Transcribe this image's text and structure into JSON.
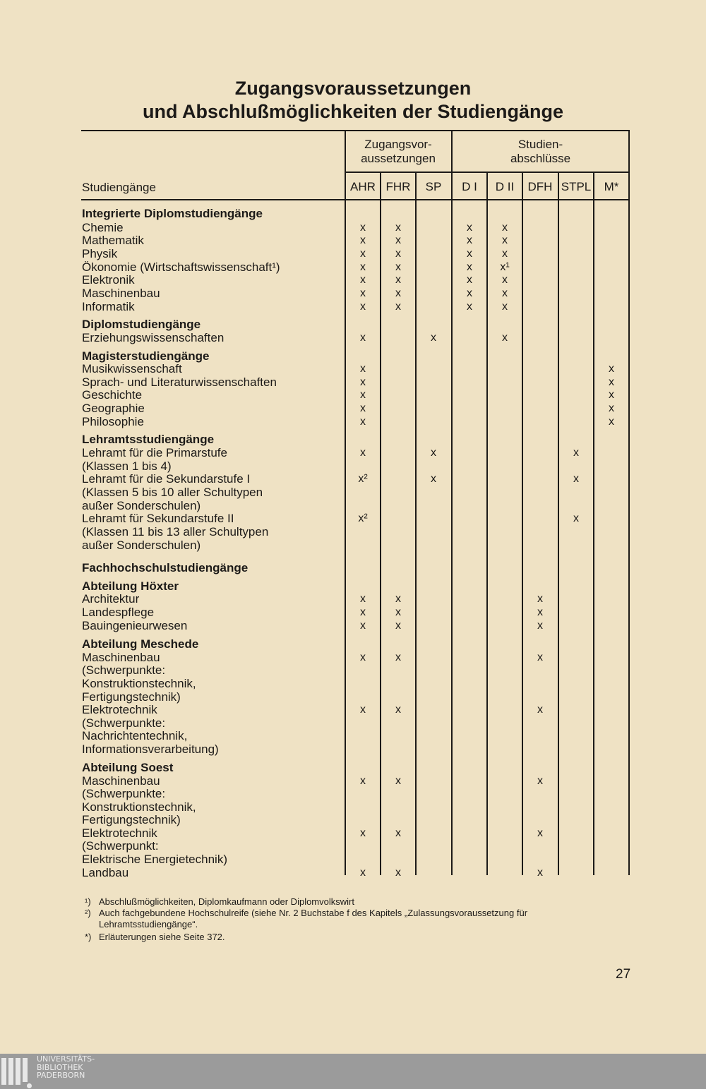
{
  "title": {
    "line1": "Zugangsvoraussetzungen",
    "line2": "und Abschlußmöglichkeiten der Studiengänge"
  },
  "table": {
    "row_header": "Studiengänge",
    "group_headers": [
      "Zugangsvor-\naussetzungen",
      "Studien-\nabschlüsse"
    ],
    "columns": [
      "AHR",
      "FHR",
      "SP",
      "D I",
      "D II",
      "DFH",
      "STPL",
      "M*"
    ],
    "rows": [
      {
        "label": "Integrierte Diplomstudiengänge",
        "bold": true,
        "marks": []
      },
      {
        "label": "Chemie",
        "marks": [
          "x",
          "x",
          "",
          "x",
          "x",
          "",
          "",
          ""
        ]
      },
      {
        "label": "Mathematik",
        "marks": [
          "x",
          "x",
          "",
          "x",
          "x",
          "",
          "",
          ""
        ]
      },
      {
        "label": "Physik",
        "marks": [
          "x",
          "x",
          "",
          "x",
          "x",
          "",
          "",
          ""
        ]
      },
      {
        "label": "Ökonomie (Wirtschaftswissenschaft¹)",
        "marks": [
          "x",
          "x",
          "",
          "x",
          "x¹",
          "",
          "",
          ""
        ]
      },
      {
        "label": "Elektronik",
        "marks": [
          "x",
          "x",
          "",
          "x",
          "x",
          "",
          "",
          ""
        ]
      },
      {
        "label": "Maschinenbau",
        "marks": [
          "x",
          "x",
          "",
          "x",
          "x",
          "",
          "",
          ""
        ]
      },
      {
        "label": "Informatik",
        "marks": [
          "x",
          "x",
          "",
          "x",
          "x",
          "",
          "",
          ""
        ]
      },
      {
        "label": "Diplomstudiengänge",
        "bold": true,
        "marks": []
      },
      {
        "label": "Erziehungswissenschaften",
        "marks": [
          "x",
          "",
          "x",
          "",
          "x",
          "",
          "",
          ""
        ]
      },
      {
        "label": "Magisterstudiengänge",
        "bold": true,
        "marks": []
      },
      {
        "label": "Musikwissenschaft",
        "marks": [
          "x",
          "",
          "",
          "",
          "",
          "",
          "",
          "x"
        ]
      },
      {
        "label": "Sprach- und Literaturwissenschaften",
        "marks": [
          "x",
          "",
          "",
          "",
          "",
          "",
          "",
          "x"
        ]
      },
      {
        "label": "Geschichte",
        "marks": [
          "x",
          "",
          "",
          "",
          "",
          "",
          "",
          "x"
        ]
      },
      {
        "label": "Geographie",
        "marks": [
          "x",
          "",
          "",
          "",
          "",
          "",
          "",
          "x"
        ]
      },
      {
        "label": "Philosophie",
        "marks": [
          "x",
          "",
          "",
          "",
          "",
          "",
          "",
          "x"
        ]
      },
      {
        "label": "Lehramtsstudiengänge",
        "bold": true,
        "marks": []
      },
      {
        "label": "Lehramt für die Primarstufe",
        "marks": [
          "x",
          "",
          "x",
          "",
          "",
          "",
          "x",
          ""
        ]
      },
      {
        "label": "(Klassen 1 bis 4)",
        "marks": []
      },
      {
        "label": "Lehramt für die Sekundarstufe I",
        "marks": [
          "x²",
          "",
          "x",
          "",
          "",
          "",
          "x",
          ""
        ]
      },
      {
        "label": "(Klassen 5 bis 10 aller Schultypen",
        "marks": []
      },
      {
        "label": "außer Sonderschulen)",
        "marks": []
      },
      {
        "label": "Lehramt für Sekundarstufe II",
        "marks": [
          "x²",
          "",
          "",
          "",
          "",
          "",
          "x",
          ""
        ]
      },
      {
        "label": "(Klassen 11 bis 13 aller Schultypen",
        "marks": []
      },
      {
        "label": "außer Sonderschulen)",
        "marks": []
      },
      {
        "label": "Fachhochschulstudiengänge",
        "bold": true,
        "marks": []
      },
      {
        "label": "Abteilung Höxter",
        "bold": true,
        "marks": []
      },
      {
        "label": "Architektur",
        "marks": [
          "x",
          "x",
          "",
          "",
          "",
          "x",
          "",
          ""
        ]
      },
      {
        "label": "Landespflege",
        "marks": [
          "x",
          "x",
          "",
          "",
          "",
          "x",
          "",
          ""
        ]
      },
      {
        "label": "Bauingenieurwesen",
        "marks": [
          "x",
          "x",
          "",
          "",
          "",
          "x",
          "",
          ""
        ]
      },
      {
        "label": "Abteilung Meschede",
        "bold": true,
        "marks": []
      },
      {
        "label": "Maschinenbau",
        "marks": [
          "x",
          "x",
          "",
          "",
          "",
          "x",
          "",
          ""
        ]
      },
      {
        "label": "(Schwerpunkte:",
        "marks": []
      },
      {
        "label": "Konstruktionstechnik,",
        "marks": []
      },
      {
        "label": "Fertigungstechnik)",
        "marks": []
      },
      {
        "label": "Elektrotechnik",
        "marks": [
          "x",
          "x",
          "",
          "",
          "",
          "x",
          "",
          ""
        ]
      },
      {
        "label": "(Schwerpunkte:",
        "marks": []
      },
      {
        "label": "Nachrichtentechnik,",
        "marks": []
      },
      {
        "label": "Informationsverarbeitung)",
        "marks": []
      },
      {
        "label": "Abteilung Soest",
        "bold": true,
        "marks": []
      },
      {
        "label": "Maschinenbau",
        "marks": [
          "x",
          "x",
          "",
          "",
          "",
          "x",
          "",
          ""
        ]
      },
      {
        "label": "(Schwerpunkte:",
        "marks": []
      },
      {
        "label": "Konstruktionstechnik,",
        "marks": []
      },
      {
        "label": "Fertigungstechnik)",
        "marks": []
      },
      {
        "label": "Elektrotechnik",
        "marks": [
          "x",
          "x",
          "",
          "",
          "",
          "x",
          "",
          ""
        ]
      },
      {
        "label": "(Schwerpunkt:",
        "marks": []
      },
      {
        "label": "Elektrische Energietechnik)",
        "marks": []
      },
      {
        "label": "Landbau",
        "marks": [
          "x",
          "x",
          "",
          "",
          "",
          "x",
          "",
          ""
        ]
      }
    ]
  },
  "footnotes": [
    {
      "mark": "¹)",
      "text": "Abschlußmöglichkeiten, Diplomkaufmann oder Diplomvolkswirt"
    },
    {
      "mark": "²)",
      "text": "Auch fachgebundene Hochschulreife (siehe Nr. 2 Buchstabe f des Kapitels „Zulassungsvoraussetzung für"
    },
    {
      "mark": "",
      "text": "Lehramtsstudiengänge“."
    },
    {
      "mark": "*)",
      "text": "Erläuterungen siehe Seite 372."
    }
  ],
  "page_number": "27",
  "library_logo": "UNIVERSITÄTS-\nBIBLIOTHEK\nPADERBORN"
}
